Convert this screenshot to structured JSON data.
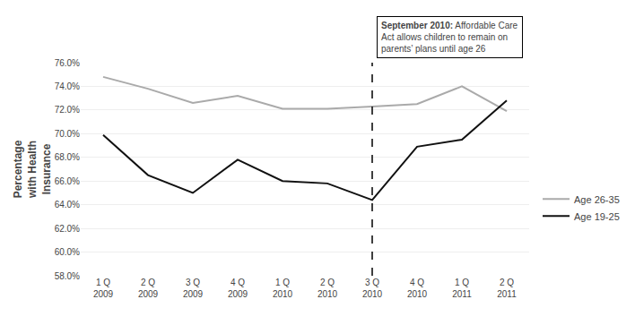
{
  "chart_data": {
    "type": "line",
    "ylabel": "Percentage\nwith Health\nInsurance",
    "categories": [
      "1 Q\n2009",
      "2 Q\n2009",
      "3 Q\n2009",
      "4 Q\n2009",
      "1 Q\n2010",
      "2 Q\n2010",
      "3 Q\n2010",
      "4 Q\n2010",
      "1 Q\n2011",
      "2 Q\n2011"
    ],
    "series": [
      {
        "name": "Age 26-35",
        "color": "#aaaaaa",
        "values": [
          74.8,
          73.8,
          72.6,
          73.2,
          72.1,
          72.1,
          72.3,
          72.5,
          74.0,
          71.9
        ]
      },
      {
        "name": "Age 19-25",
        "color": "#111111",
        "values": [
          69.9,
          66.5,
          65.0,
          67.8,
          66.0,
          65.8,
          64.4,
          68.9,
          69.5,
          72.8
        ]
      }
    ],
    "ylim": [
      58.0,
      76.0
    ],
    "yticks": [
      {
        "value": 58.0,
        "label": "58.0%"
      },
      {
        "value": 60.0,
        "label": "60.0%"
      },
      {
        "value": 62.0,
        "label": "62.0%"
      },
      {
        "value": 64.0,
        "label": "64.0%"
      },
      {
        "value": 66.0,
        "label": "66.0%"
      },
      {
        "value": 68.0,
        "label": "68.0%"
      },
      {
        "value": 70.0,
        "label": "70.0%"
      },
      {
        "value": 72.0,
        "label": "72.0%"
      },
      {
        "value": 74.0,
        "label": "74.0%"
      },
      {
        "value": 76.0,
        "label": "76.0%"
      }
    ],
    "grid": true,
    "legend": "right",
    "annotations": [
      {
        "text": "September 2010: Affordable Care\nAct allows children to remain on\nparents’ plans until age 26",
        "bold": "September 2010:",
        "x": "3 Q\n2010",
        "line_style": "dashed",
        "color": "#000000"
      }
    ]
  }
}
